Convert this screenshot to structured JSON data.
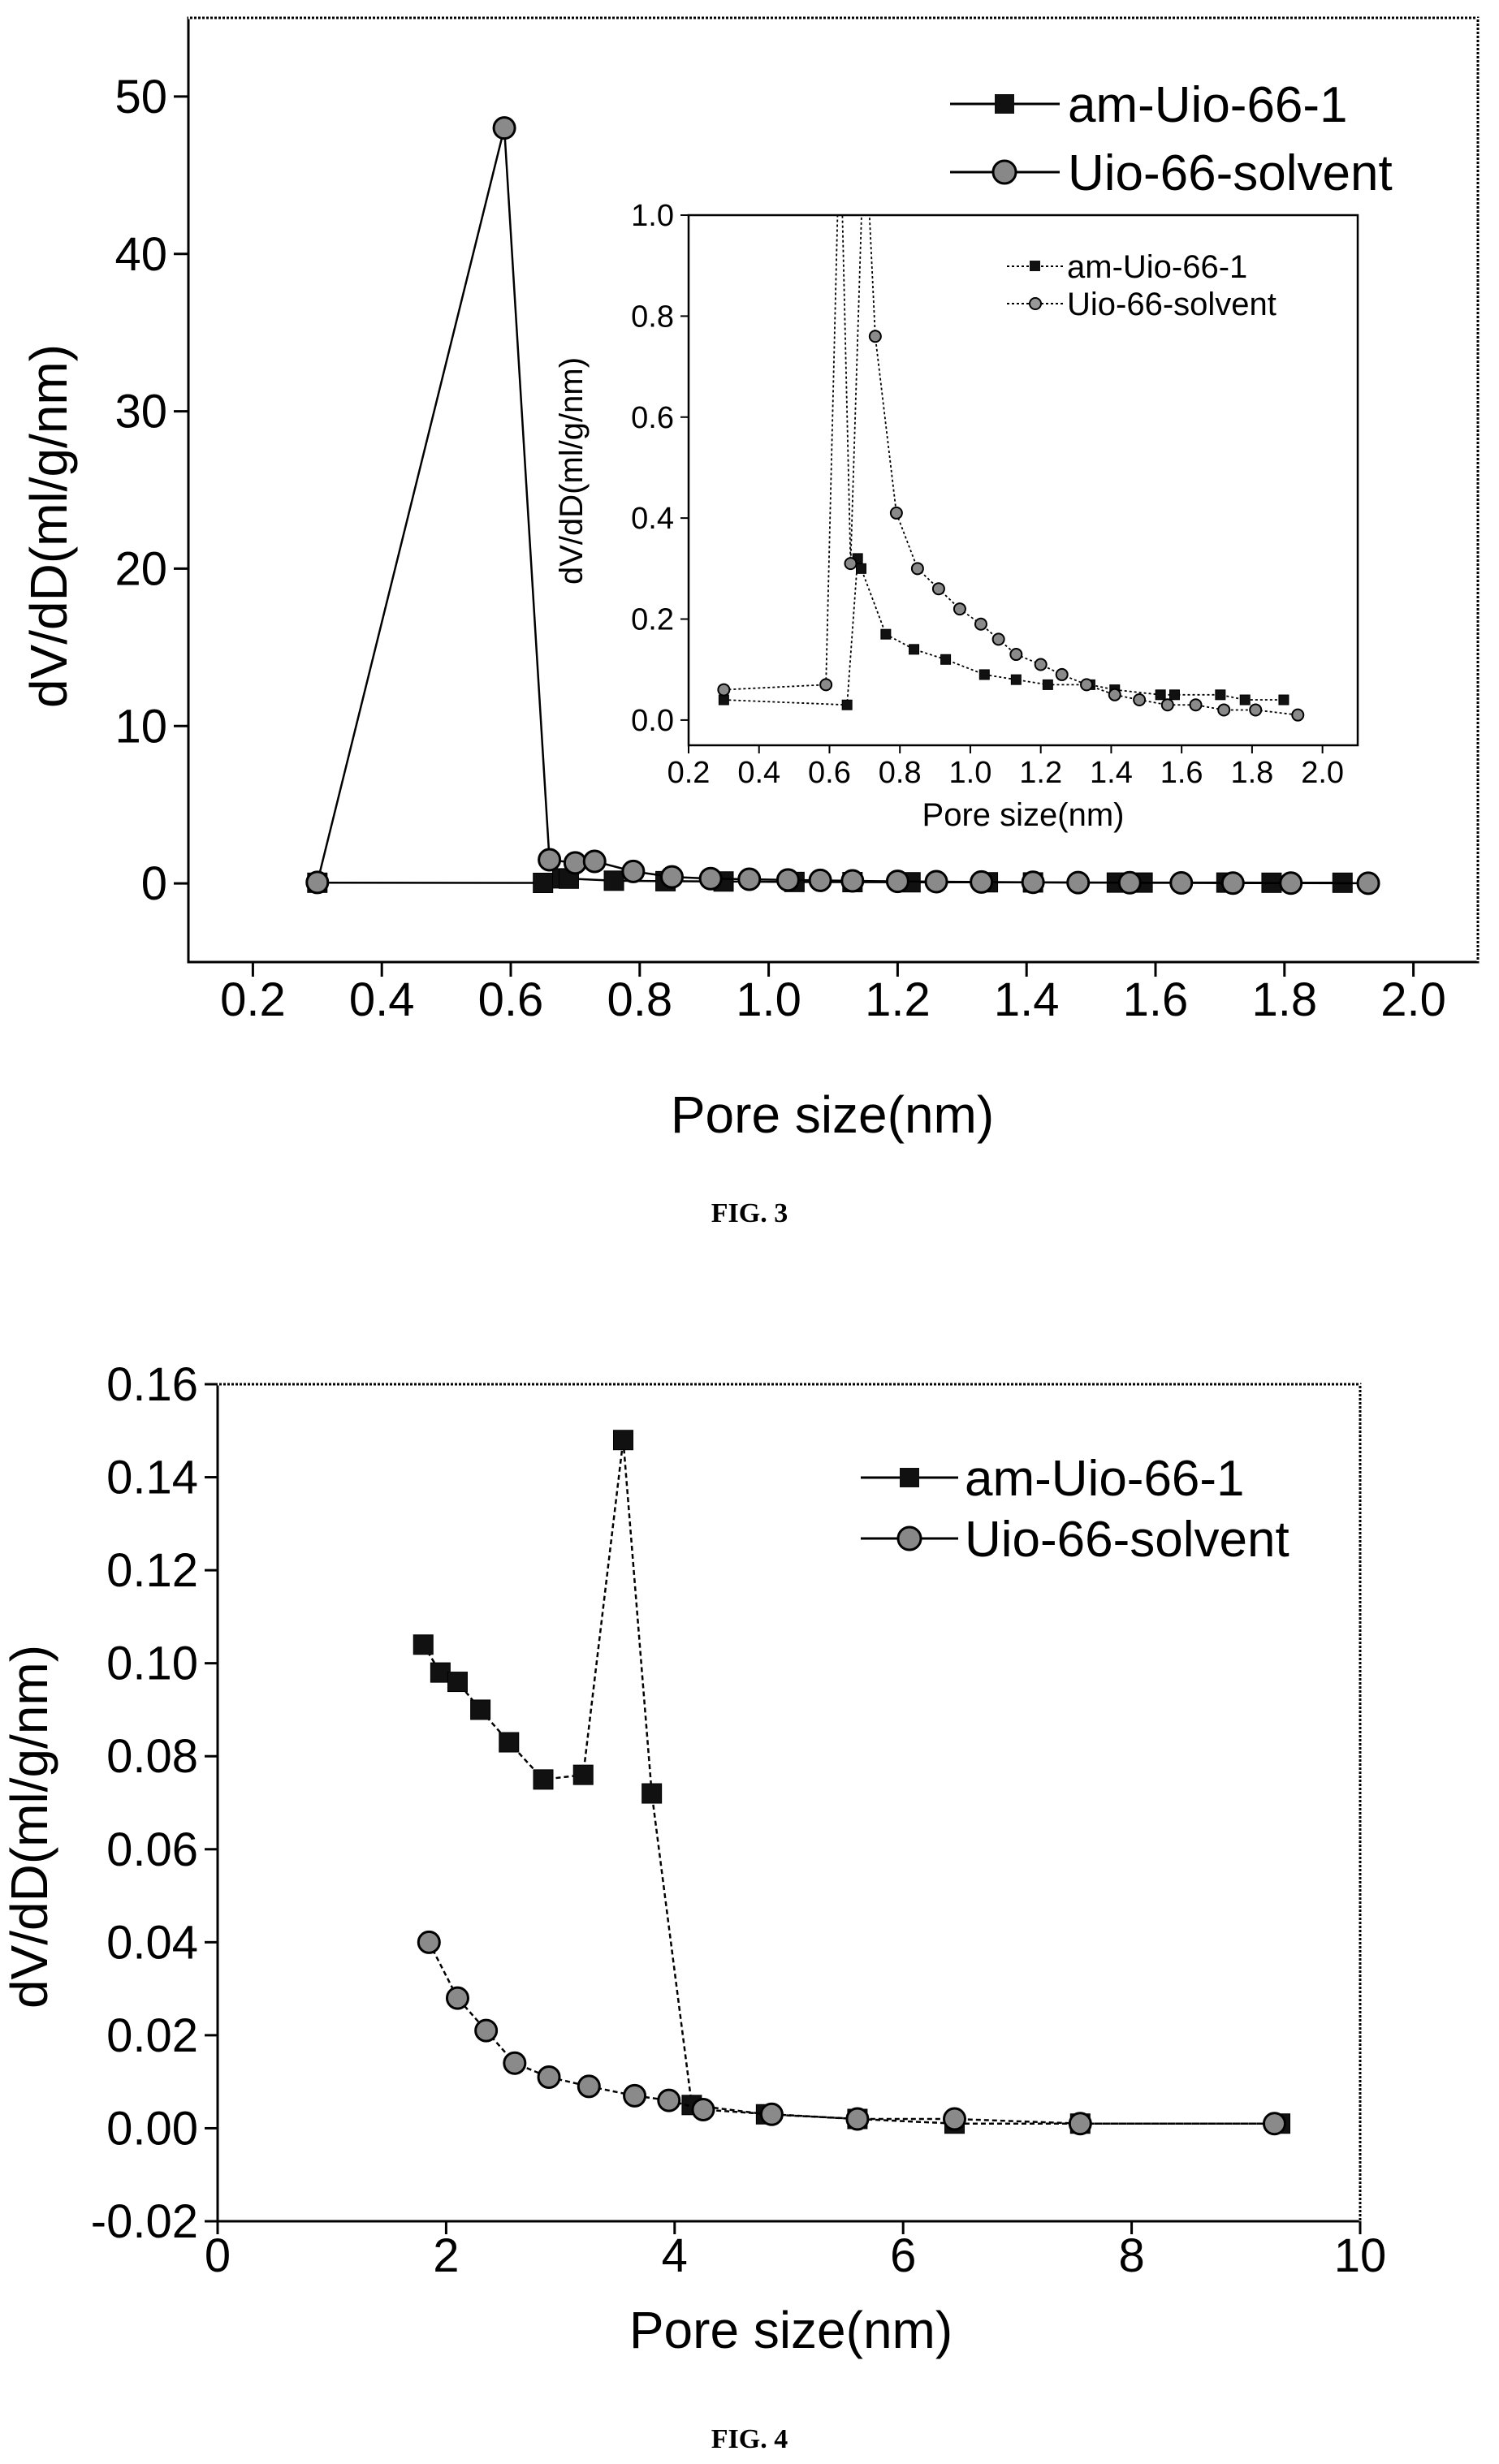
{
  "figures": [
    {
      "caption": "FIG. 3"
    },
    {
      "caption": "FIG. 4"
    }
  ],
  "chart_data": [
    {
      "type": "line",
      "xlabel": "Pore size(nm)",
      "ylabel": "dV/dD(ml/g/nm)",
      "xlim": [
        0.1,
        2.1
      ],
      "ylim": [
        -5,
        55
      ],
      "xticks": [
        "0.2",
        "0.4",
        "0.6",
        "0.8",
        "1.0",
        "1.2",
        "1.4",
        "1.6",
        "1.8",
        "2.0"
      ],
      "yticks": [
        "0",
        "10",
        "20",
        "30",
        "40",
        "50"
      ],
      "legend_position": "top-right",
      "series": [
        {
          "name": "am-Uio-66-1",
          "marker": "square",
          "x": [
            0.3,
            0.65,
            0.68,
            0.69,
            0.76,
            0.84,
            0.93,
            1.04,
            1.13,
            1.22,
            1.34,
            1.41,
            1.54,
            1.58,
            1.71,
            1.78,
            1.89
          ],
          "y": [
            0.04,
            0.03,
            0.32,
            0.3,
            0.17,
            0.14,
            0.12,
            0.09,
            0.08,
            0.07,
            0.07,
            0.06,
            0.05,
            0.05,
            0.05,
            0.04,
            0.04
          ]
        },
        {
          "name": "Uio-66-solvent",
          "marker": "circle",
          "x": [
            0.3,
            0.59,
            0.66,
            0.7,
            0.73,
            0.79,
            0.85,
            0.91,
            0.97,
            1.03,
            1.08,
            1.13,
            1.2,
            1.26,
            1.33,
            1.41,
            1.48,
            1.56,
            1.64,
            1.72,
            1.81,
            1.93
          ],
          "y": [
            0.06,
            48.0,
            1.5,
            1.3,
            1.4,
            0.76,
            0.41,
            0.3,
            0.26,
            0.22,
            0.19,
            0.16,
            0.13,
            0.11,
            0.09,
            0.07,
            0.05,
            0.04,
            0.03,
            0.02,
            0.02,
            0.01
          ]
        }
      ],
      "inset": {
        "xlabel": "Pore size(nm)",
        "ylabel": "dV/dD(ml/g/nm)",
        "xlim": [
          0.2,
          2.1
        ],
        "ylim": [
          -0.05,
          1.0
        ],
        "xticks": [
          "0.2",
          "0.4",
          "0.6",
          "0.8",
          "1.0",
          "1.2",
          "1.4",
          "1.6",
          "1.8",
          "2.0"
        ],
        "yticks": [
          "0.0",
          "0.2",
          "0.4",
          "0.6",
          "0.8",
          "1.0"
        ],
        "legend_position": "top-right",
        "series": [
          {
            "name": "am-Uio-66-1",
            "marker": "square",
            "x": [
              0.3,
              0.65,
              0.68,
              0.69,
              0.76,
              0.84,
              0.93,
              1.04,
              1.13,
              1.22,
              1.34,
              1.41,
              1.54,
              1.58,
              1.71,
              1.78,
              1.89
            ],
            "y": [
              0.04,
              0.03,
              0.32,
              0.3,
              0.17,
              0.14,
              0.12,
              0.09,
              0.08,
              0.07,
              0.07,
              0.06,
              0.05,
              0.05,
              0.05,
              0.04,
              0.04
            ]
          },
          {
            "name": "Uio-66-solvent",
            "marker": "circle",
            "x": [
              0.3,
              0.59,
              0.63,
              0.66,
              0.7,
              0.73,
              0.79,
              0.85,
              0.91,
              0.97,
              1.03,
              1.08,
              1.13,
              1.2,
              1.26,
              1.33,
              1.41,
              1.48,
              1.56,
              1.64,
              1.72,
              1.81,
              1.93
            ],
            "y": [
              0.06,
              0.07,
              1.2,
              0.31,
              1.2,
              0.76,
              0.41,
              0.3,
              0.26,
              0.22,
              0.19,
              0.16,
              0.13,
              0.11,
              0.09,
              0.07,
              0.05,
              0.04,
              0.03,
              0.03,
              0.02,
              0.02,
              0.01
            ]
          }
        ]
      }
    },
    {
      "type": "line",
      "xlabel": "Pore size(nm)",
      "ylabel": "dV/dD(ml/g/nm)",
      "xlim": [
        0,
        10
      ],
      "ylim": [
        -0.02,
        0.16
      ],
      "xticks": [
        "0",
        "2",
        "4",
        "6",
        "8",
        "10"
      ],
      "yticks": [
        "-0.02",
        "0.00",
        "0.02",
        "0.04",
        "0.06",
        "0.08",
        "0.10",
        "0.12",
        "0.14",
        "0.16"
      ],
      "legend_position": "top-right",
      "series": [
        {
          "name": "am-Uio-66-1",
          "marker": "square",
          "x": [
            1.8,
            1.95,
            2.1,
            2.3,
            2.55,
            2.85,
            3.2,
            3.55,
            3.8,
            4.15,
            4.8,
            5.6,
            6.45,
            7.55,
            9.3
          ],
          "y": [
            0.104,
            0.098,
            0.096,
            0.09,
            0.083,
            0.075,
            0.076,
            0.148,
            0.072,
            0.005,
            0.003,
            0.002,
            0.001,
            0.001,
            0.001
          ]
        },
        {
          "name": "Uio-66-solvent",
          "marker": "circle",
          "x": [
            1.85,
            2.1,
            2.35,
            2.6,
            2.9,
            3.25,
            3.65,
            3.95,
            4.25,
            4.85,
            5.6,
            6.45,
            7.55,
            9.25
          ],
          "y": [
            0.04,
            0.028,
            0.021,
            0.014,
            0.011,
            0.009,
            0.007,
            0.006,
            0.004,
            0.003,
            0.002,
            0.002,
            0.001,
            0.001
          ]
        }
      ]
    }
  ]
}
